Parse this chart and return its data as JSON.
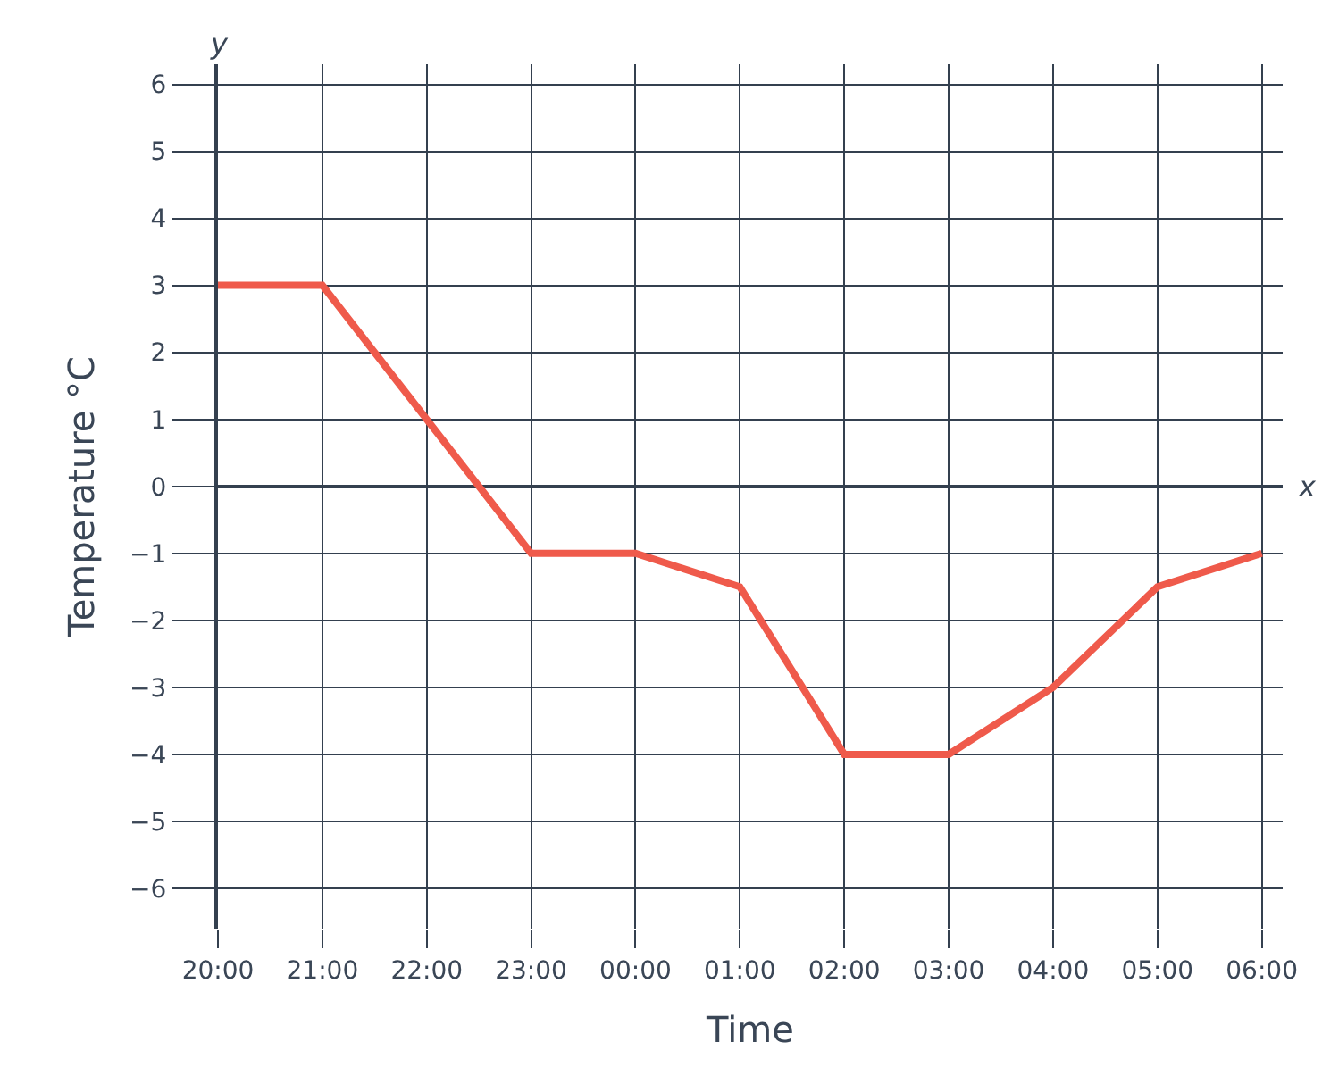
{
  "chart_data": {
    "type": "line",
    "xlabel": "Time",
    "ylabel": "Temperature °C",
    "annotations": [
      "y",
      "x"
    ],
    "categories": [
      "20:00",
      "21:00",
      "22:00",
      "23:00",
      "00:00",
      "01:00",
      "02:00",
      "03:00",
      "04:00",
      "05:00",
      "06:00"
    ],
    "series": [
      {
        "color": "#ef5a4b",
        "values": [
          3,
          3,
          1,
          -1,
          -1,
          -1.5,
          -4,
          -4,
          -3,
          -1.5,
          -1
        ]
      }
    ],
    "ylim": [
      -6.6,
      6.3
    ],
    "yticks": [
      {
        "value": -6,
        "label": "−6"
      },
      {
        "value": -5,
        "label": "−5"
      },
      {
        "value": -4,
        "label": "−4"
      },
      {
        "value": -3,
        "label": "−3"
      },
      {
        "value": -2,
        "label": "−2"
      },
      {
        "value": -1,
        "label": "−1"
      },
      0,
      1,
      2,
      3,
      4,
      5,
      6
    ],
    "grid": true,
    "marker": "none",
    "line_style": "solid"
  }
}
